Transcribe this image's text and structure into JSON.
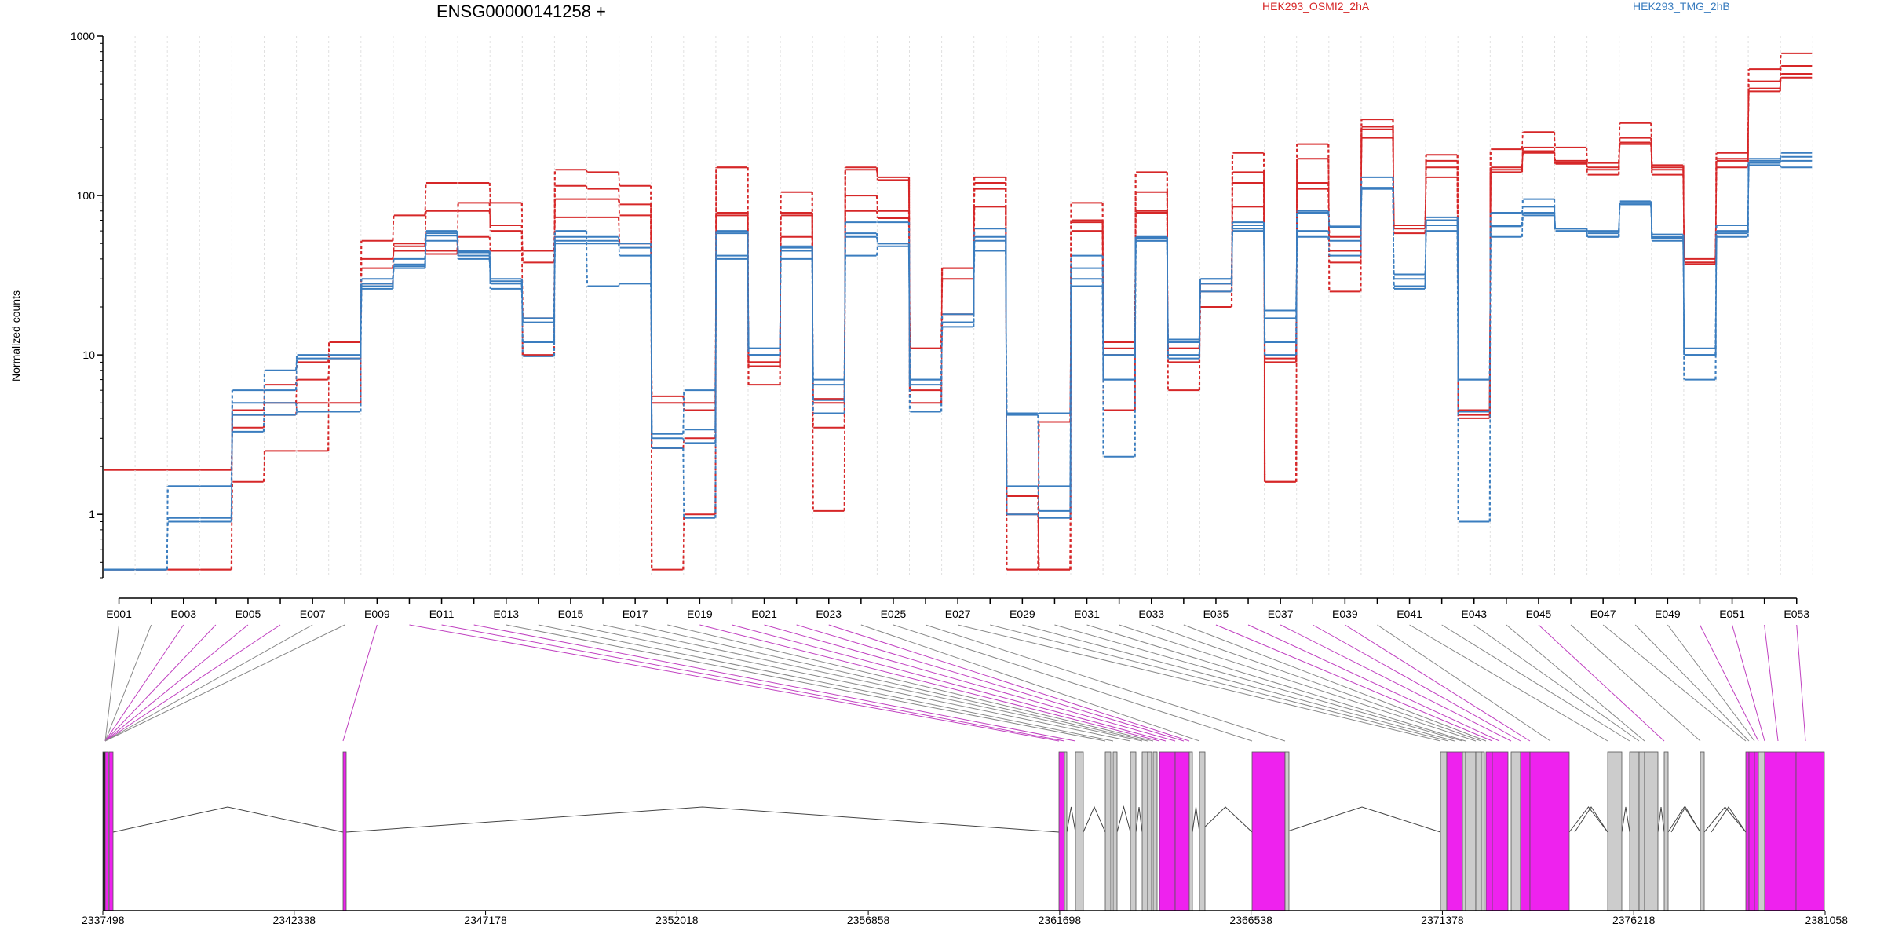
{
  "chart_data": {
    "type": "line",
    "title": "ENSG00000141258 +",
    "ylabel": "Normalized counts",
    "yscale": "log",
    "ylim": [
      0.4,
      1000
    ],
    "y_ticks": [
      1,
      10,
      100,
      1000
    ],
    "y_tick_labels": [
      "1",
      "10",
      "100",
      "1000"
    ],
    "legend": {
      "placement": "top",
      "entries": [
        {
          "label": "HEK293_OSMI2_2hA",
          "color": "#d62728"
        },
        {
          "label": "HEK293_TMG_2hB",
          "color": "#3a7dbf"
        }
      ]
    },
    "bins": [
      "E001",
      "E002",
      "E003",
      "E004",
      "E005",
      "E006",
      "E007",
      "E008",
      "E009",
      "E010",
      "E011",
      "E012",
      "E013",
      "E014",
      "E015",
      "E016",
      "E017",
      "E018",
      "E019",
      "E020",
      "E021",
      "E022",
      "E023",
      "E024",
      "E025",
      "E026",
      "E027",
      "E028",
      "E029",
      "E030",
      "E031",
      "E032",
      "E033",
      "E034",
      "E035",
      "E036",
      "E037",
      "E038",
      "E039",
      "E040",
      "E041",
      "E042",
      "E043",
      "E044",
      "E045",
      "E046",
      "E047",
      "E048",
      "E049",
      "E050",
      "E051",
      "E052",
      "E053"
    ],
    "x_tick_labels": [
      "E001",
      "E003",
      "E005",
      "E007",
      "E009",
      "E011",
      "E013",
      "E015",
      "E017",
      "E019",
      "E021",
      "E023",
      "E025",
      "E027",
      "E029",
      "E031",
      "E033",
      "E035",
      "E037",
      "E039",
      "E041",
      "E043",
      "E045",
      "E047",
      "E049",
      "E051",
      "E053"
    ],
    "series": [
      {
        "group": "HEK293_OSMI2_2hA",
        "color": "#d62728",
        "values": [
          1.9,
          1.9,
          1.9,
          1.9,
          4.2,
          4.2,
          5,
          5,
          40,
          45,
          43,
          55,
          45,
          45,
          73,
          73,
          50,
          5,
          4.5,
          75,
          8.5,
          55,
          5,
          80,
          72,
          5,
          18,
          85,
          1,
          0.45,
          68,
          11,
          78,
          11,
          25,
          85,
          9,
          110,
          45,
          230,
          58,
          130,
          4.5,
          140,
          185,
          160,
          145,
          210,
          145,
          38,
          165,
          450,
          580
        ]
      },
      {
        "group": "HEK293_OSMI2_2hA",
        "color": "#d62728",
        "values": [
          1.9,
          1.9,
          1.9,
          1.9,
          3.5,
          5,
          7,
          9.5,
          28,
          48,
          80,
          80,
          65,
          17,
          115,
          110,
          88,
          2.6,
          3,
          78,
          9,
          75,
          1.05,
          100,
          80,
          11,
          30,
          120,
          0.45,
          3.8,
          60,
          4.5,
          80,
          9,
          28,
          120,
          1.6,
          120,
          38,
          270,
          65,
          150,
          4.2,
          145,
          190,
          158,
          135,
          230,
          150,
          40,
          170,
          520,
          650
        ]
      },
      {
        "group": "HEK293_OSMI2_2hA",
        "color": "#d62728",
        "values": [
          0.45,
          0.45,
          0.45,
          0.45,
          1.6,
          2.5,
          2.5,
          12,
          52,
          75,
          120,
          120,
          90,
          38,
          145,
          140,
          115,
          0.45,
          1,
          150,
          6.5,
          105,
          3.5,
          145,
          130,
          6,
          35,
          130,
          0.45,
          0.45,
          90,
          12,
          140,
          6,
          20,
          185,
          1.6,
          210,
          25,
          300,
          62,
          180,
          4,
          195,
          250,
          200,
          160,
          285,
          155,
          37,
          185,
          620,
          780
        ]
      },
      {
        "group": "HEK293_OSMI2_2hA",
        "color": "#d62728",
        "values": [
          0.45,
          0.45,
          0.45,
          0.45,
          4.5,
          6.5,
          9,
          12,
          35,
          50,
          45,
          90,
          60,
          10,
          95,
          95,
          75,
          5.5,
          5,
          150,
          9,
          78,
          5.3,
          150,
          125,
          11,
          35,
          110,
          1.3,
          0.45,
          70,
          10,
          105,
          11,
          28,
          140,
          9.5,
          170,
          55,
          260,
          65,
          165,
          4.4,
          150,
          200,
          165,
          150,
          215,
          135,
          38,
          150,
          470,
          550
        ]
      },
      {
        "group": "HEK293_TMG_2hB",
        "color": "#3a7dbf",
        "values": [
          0.45,
          0.45,
          0.95,
          0.95,
          5,
          5,
          4.4,
          4.4,
          26,
          35,
          52,
          42,
          28,
          9.8,
          50,
          50,
          42,
          3.2,
          3.4,
          42,
          10,
          40,
          4.3,
          42,
          48,
          4.4,
          16,
          45,
          1.5,
          1.05,
          27,
          2.3,
          52,
          9.5,
          25,
          60,
          10,
          55,
          42,
          110,
          27,
          60,
          0.9,
          55,
          75,
          60,
          55,
          90,
          52,
          7,
          55,
          155,
          150
        ]
      },
      {
        "group": "HEK293_TMG_2hB",
        "color": "#3a7dbf",
        "values": [
          0.45,
          0.45,
          1.5,
          1.5,
          6,
          6,
          9.5,
          9.5,
          30,
          40,
          58,
          44,
          30,
          12,
          55,
          55,
          47,
          3,
          2.8,
          60,
          11,
          48,
          6.5,
          68,
          68,
          7,
          18,
          52,
          4.2,
          1.5,
          42,
          7,
          54,
          12,
          30,
          68,
          12,
          78,
          64,
          110,
          32,
          70,
          7,
          78,
          85,
          62,
          60,
          88,
          55,
          11,
          60,
          165,
          175
        ]
      },
      {
        "group": "HEK293_TMG_2hB",
        "color": "#3a7dbf",
        "values": [
          0.45,
          0.45,
          0.9,
          0.9,
          4.2,
          4.2,
          4.4,
          4.4,
          28,
          36,
          56,
          45,
          29,
          16,
          52,
          52,
          50,
          2.6,
          0.95,
          58,
          10,
          47,
          5.2,
          58,
          50,
          6.5,
          15,
          55,
          1,
          0.95,
          30,
          10,
          55,
          10,
          28,
          65,
          17,
          60,
          52,
          112,
          30,
          65,
          4.4,
          64,
          78,
          62,
          58,
          92,
          54,
          10,
          58,
          160,
          165
        ]
      },
      {
        "group": "HEK293_TMG_2hB",
        "color": "#3a7dbf",
        "values": [
          0.45,
          0.45,
          1.5,
          1.5,
          3.3,
          8,
          10,
          10,
          27,
          37,
          60,
          40,
          26,
          17,
          60,
          27,
          28,
          3.2,
          6,
          40,
          11,
          45,
          7,
          55,
          50,
          7,
          16,
          62,
          4.3,
          4.3,
          35,
          7,
          52,
          12.5,
          30,
          62,
          19,
          80,
          63,
          130,
          26,
          73,
          7,
          65,
          95,
          62,
          55,
          88,
          57,
          10,
          65,
          170,
          185
        ]
      }
    ],
    "genome_axis": {
      "ticks": [
        2337498,
        2342338,
        2347178,
        2352018,
        2356858,
        2361698,
        2366538,
        2371378,
        2376218,
        2381058
      ],
      "tick_labels": [
        "2337498",
        "2342338",
        "2347178",
        "2352018",
        "2356858",
        "2361698",
        "2366538",
        "2371378",
        "2376218",
        "2381058"
      ]
    },
    "exon_colors": {
      "significant": "#ee22ee",
      "not_significant": "#cccccc"
    }
  }
}
